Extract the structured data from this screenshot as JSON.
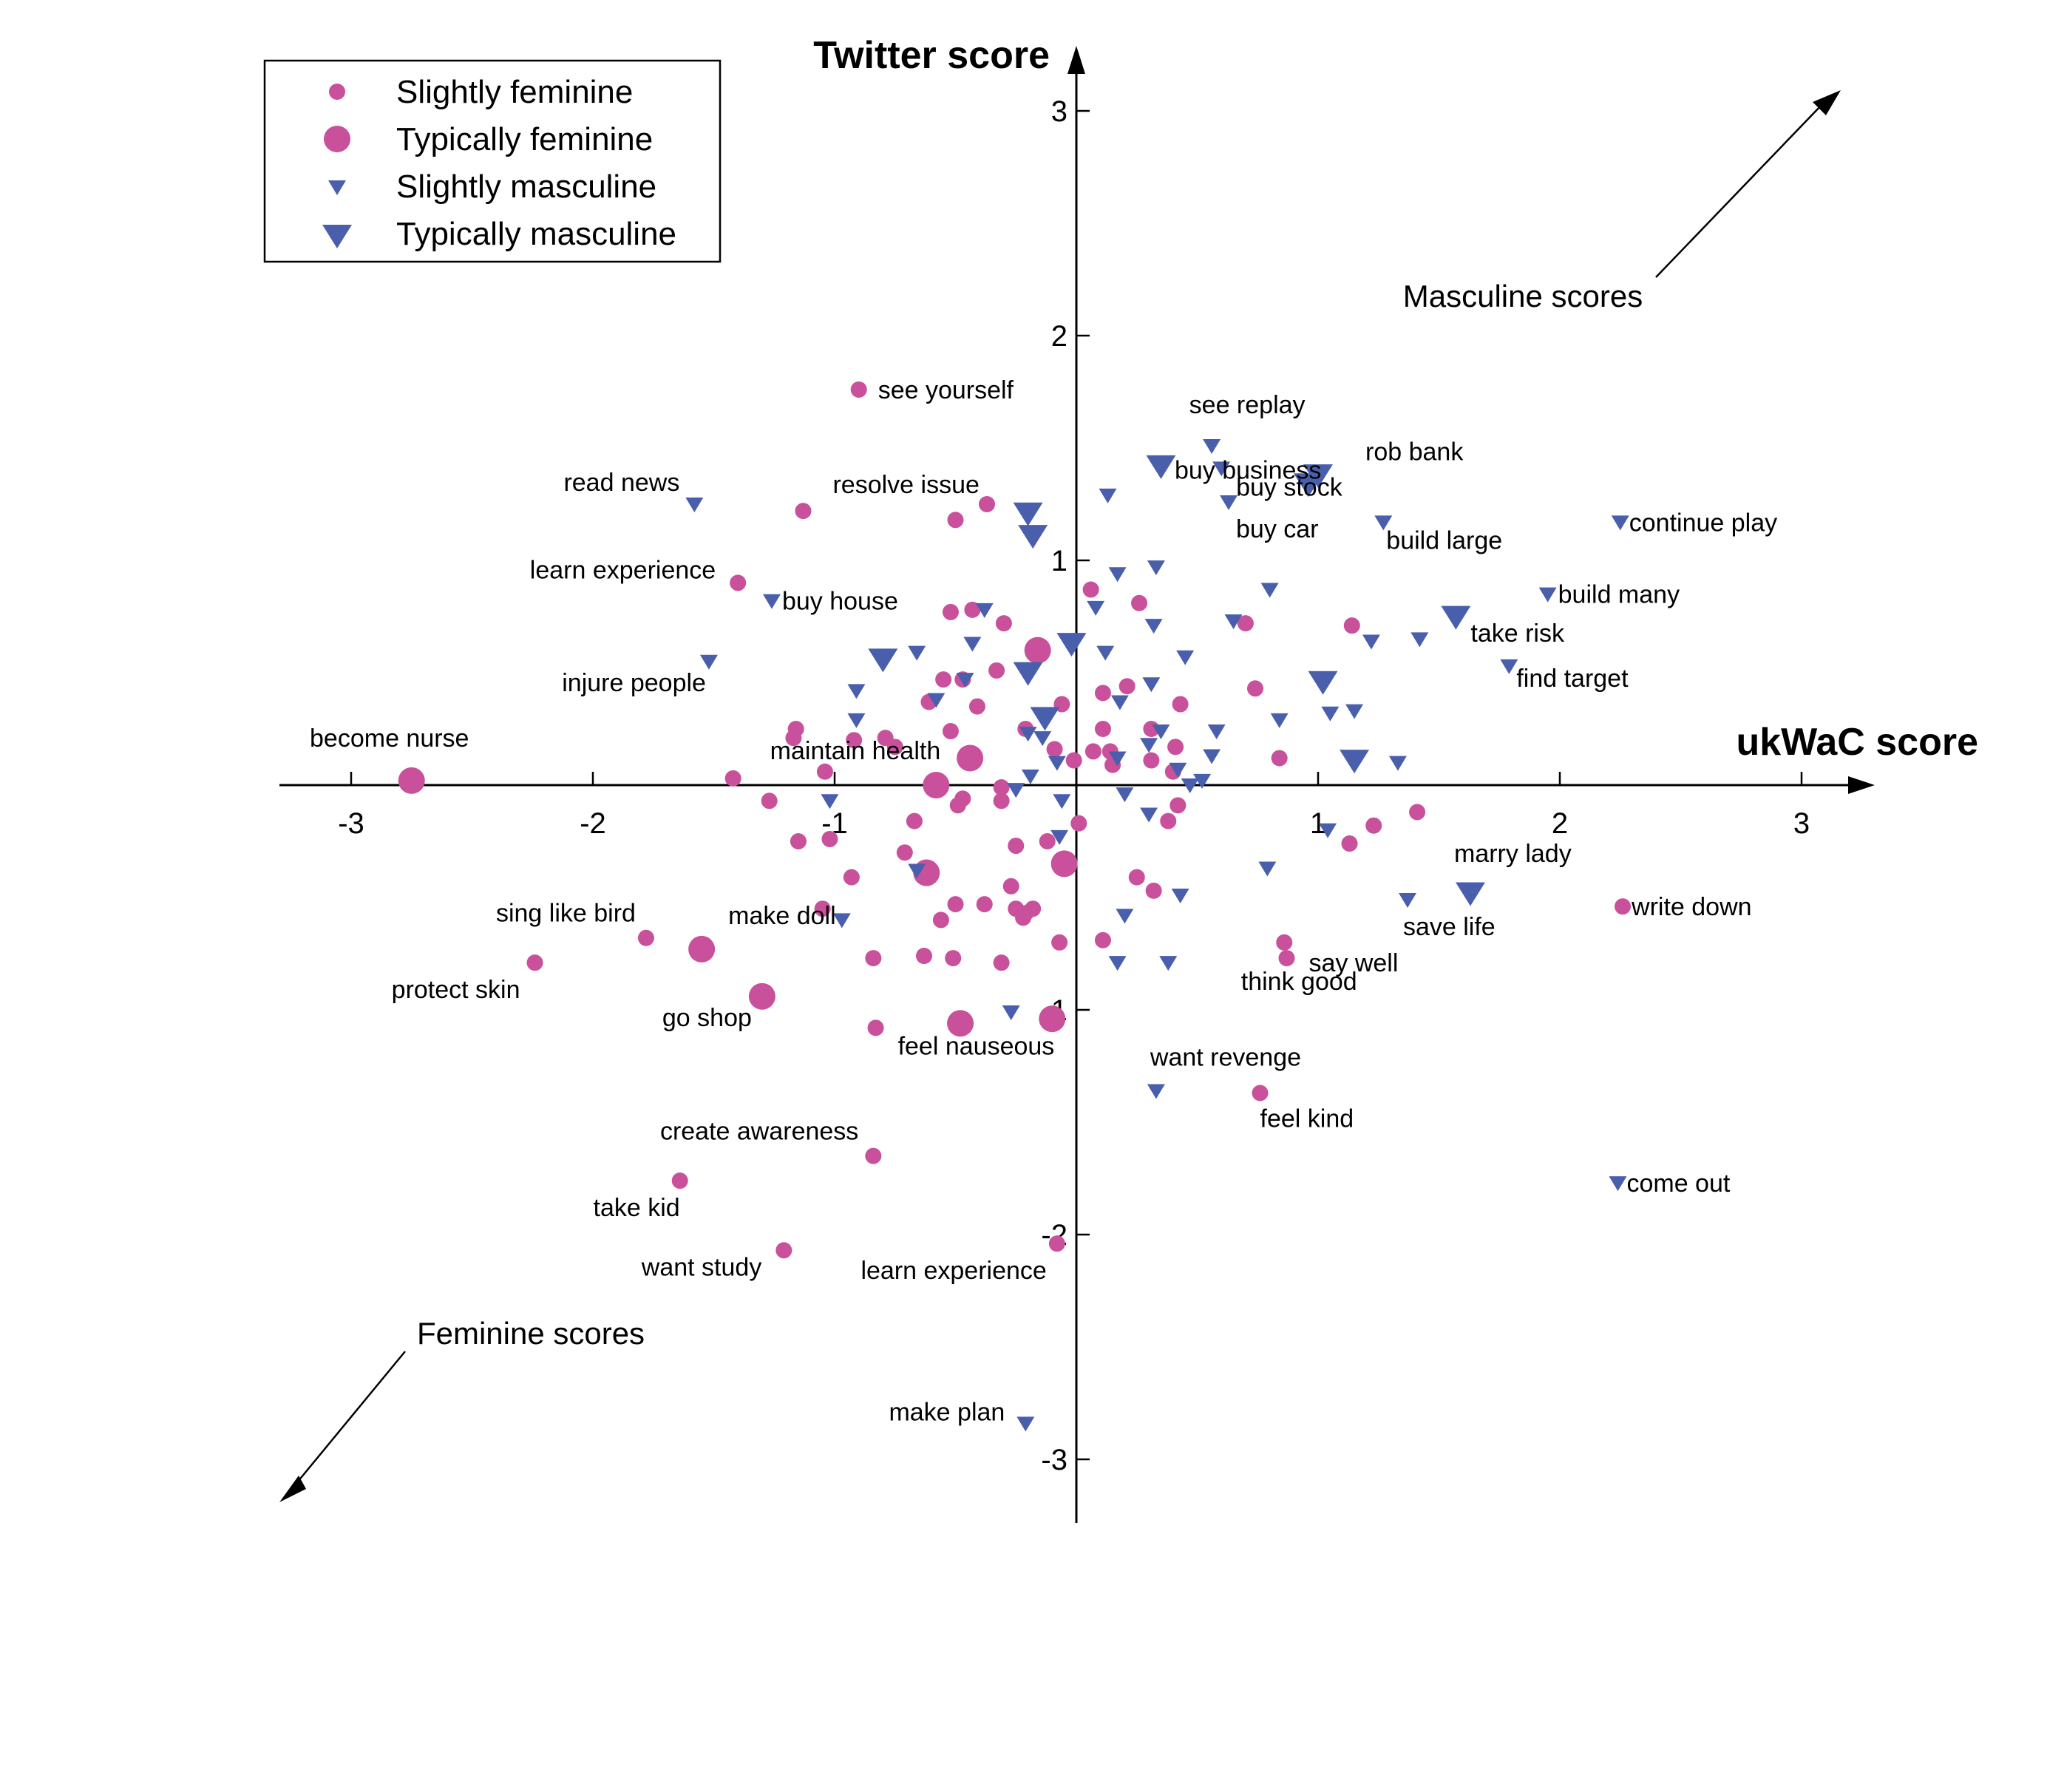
{
  "chart_data": {
    "type": "scatter",
    "xlabel": "ukWaC score",
    "ylabel": "Twitter score",
    "xlim": [
      -3.3,
      3.3
    ],
    "ylim": [
      -3.3,
      3.3
    ],
    "xticks": [
      -3,
      -2,
      -1,
      1,
      2,
      3
    ],
    "yticks": [
      3,
      2,
      1,
      -1,
      -2,
      -3
    ],
    "grid": false,
    "legend_position": "top-left",
    "colors": {
      "feminine": "#c9509a",
      "masculine": "#4a5fac"
    },
    "legend": [
      {
        "name": "Slightly feminine",
        "marker": "circle",
        "size": "small"
      },
      {
        "name": "Typically feminine",
        "marker": "circle",
        "size": "large"
      },
      {
        "name": "Slightly masculine",
        "marker": "triangle-down",
        "size": "small"
      },
      {
        "name": "Typically masculine",
        "marker": "triangle-down",
        "size": "large"
      }
    ],
    "annotations": {
      "masculine_arrow": "Masculine scores",
      "feminine_arrow": "Feminine scores"
    },
    "series": [
      {
        "name": "Slightly feminine",
        "points": [
          {
            "x": -0.9,
            "y": 1.76,
            "label": "see yourself"
          },
          {
            "x": -1.13,
            "y": 1.22,
            "label": "resolve issue"
          },
          {
            "x": -1.4,
            "y": 0.9,
            "label": "learn experience"
          },
          {
            "x": -1.42,
            "y": 0.03,
            "label": "maintain health"
          },
          {
            "x": -1.78,
            "y": -0.68,
            "label": "sing like bird"
          },
          {
            "x": -2.24,
            "y": -0.79,
            "label": "protect skin"
          },
          {
            "x": -0.83,
            "y": -1.08,
            "label": "feel nauseous"
          },
          {
            "x": -0.84,
            "y": -1.65,
            "label": "create awareness"
          },
          {
            "x": -1.64,
            "y": -1.76,
            "label": "take kid"
          },
          {
            "x": -1.21,
            "y": -2.07,
            "label": "want study"
          },
          {
            "x": -0.08,
            "y": -2.04,
            "label": "learn experience"
          },
          {
            "x": 0.87,
            "y": -0.77,
            "label": "say well"
          },
          {
            "x": 0.86,
            "y": -0.7,
            "label": "think good"
          },
          {
            "x": 0.76,
            "y": -1.37,
            "label": "feel kind"
          },
          {
            "x": 2.26,
            "y": -0.54,
            "label": "write down"
          },
          {
            "x": -0.5,
            "y": 1.18
          },
          {
            "x": -0.37,
            "y": 1.25
          },
          {
            "x": -0.52,
            "y": 0.77
          },
          {
            "x": -0.55,
            "y": 0.47
          },
          {
            "x": -0.41,
            "y": 0.35
          },
          {
            "x": -0.3,
            "y": 0.72
          },
          {
            "x": -0.33,
            "y": 0.51
          },
          {
            "x": -0.43,
            "y": 0.78
          },
          {
            "x": -0.47,
            "y": 0.47
          },
          {
            "x": -0.52,
            "y": 0.24
          },
          {
            "x": -0.61,
            "y": 0.37
          },
          {
            "x": -0.75,
            "y": 0.17
          },
          {
            "x": -0.79,
            "y": 0.21
          },
          {
            "x": -0.92,
            "y": 0.2
          },
          {
            "x": -1.17,
            "y": 0.21
          },
          {
            "x": -1.16,
            "y": 0.25
          },
          {
            "x": -1.04,
            "y": 0.06
          },
          {
            "x": -1.27,
            "y": -0.07
          },
          {
            "x": -1.15,
            "y": -0.25
          },
          {
            "x": -1.02,
            "y": -0.24
          },
          {
            "x": -0.93,
            "y": -0.41
          },
          {
            "x": -1.05,
            "y": -0.55
          },
          {
            "x": -0.67,
            "y": -0.16
          },
          {
            "x": -0.71,
            "y": -0.3
          },
          {
            "x": -0.47,
            "y": -0.06
          },
          {
            "x": -0.49,
            "y": -0.09
          },
          {
            "x": -0.31,
            "y": -0.07
          },
          {
            "x": -0.31,
            "y": -0.01
          },
          {
            "x": -0.5,
            "y": -0.53
          },
          {
            "x": -0.56,
            "y": -0.6
          },
          {
            "x": -0.63,
            "y": -0.76
          },
          {
            "x": -0.51,
            "y": -0.77
          },
          {
            "x": -0.31,
            "y": -0.79
          },
          {
            "x": -0.84,
            "y": -0.77
          },
          {
            "x": -0.25,
            "y": -0.27
          },
          {
            "x": -0.25,
            "y": -0.55
          },
          {
            "x": -0.22,
            "y": -0.59
          },
          {
            "x": -0.21,
            "y": -0.57
          },
          {
            "x": -0.38,
            "y": -0.53
          },
          {
            "x": -0.18,
            "y": -0.55
          },
          {
            "x": -0.27,
            "y": -0.45
          },
          {
            "x": -0.12,
            "y": -0.25
          },
          {
            "x": -0.07,
            "y": -0.7
          },
          {
            "x": 0.01,
            "y": -0.17
          },
          {
            "x": -0.21,
            "y": 0.25
          },
          {
            "x": -0.06,
            "y": 0.36
          },
          {
            "x": -0.09,
            "y": 0.16
          },
          {
            "x": -0.01,
            "y": 0.11
          },
          {
            "x": 0.06,
            "y": 0.87
          },
          {
            "x": 0.26,
            "y": 0.81
          },
          {
            "x": 0.21,
            "y": 0.44
          },
          {
            "x": 0.11,
            "y": 0.41
          },
          {
            "x": 0.11,
            "y": 0.25
          },
          {
            "x": 0.07,
            "y": 0.15
          },
          {
            "x": 0.14,
            "y": 0.15
          },
          {
            "x": 0.15,
            "y": 0.09
          },
          {
            "x": 0.31,
            "y": 0.25
          },
          {
            "x": 0.31,
            "y": 0.11
          },
          {
            "x": 0.41,
            "y": 0.17
          },
          {
            "x": 0.43,
            "y": 0.36
          },
          {
            "x": 0.4,
            "y": 0.06
          },
          {
            "x": 0.42,
            "y": -0.09
          },
          {
            "x": 0.38,
            "y": -0.16
          },
          {
            "x": 0.25,
            "y": -0.41
          },
          {
            "x": 0.32,
            "y": -0.47
          },
          {
            "x": 0.11,
            "y": -0.69
          },
          {
            "x": 0.7,
            "y": 0.72
          },
          {
            "x": 0.74,
            "y": 0.43
          },
          {
            "x": 0.84,
            "y": 0.12
          },
          {
            "x": 1.14,
            "y": 0.71
          },
          {
            "x": 1.13,
            "y": -0.26
          },
          {
            "x": 1.23,
            "y": -0.18
          },
          {
            "x": 1.41,
            "y": -0.12
          }
        ]
      },
      {
        "name": "Typically feminine",
        "points": [
          {
            "x": -2.75,
            "y": 0.02,
            "label": "become nurse"
          },
          {
            "x": -1.55,
            "y": -0.73,
            "label": "make doll"
          },
          {
            "x": -1.3,
            "y": -0.94,
            "label": "go shop"
          },
          {
            "x": -0.48,
            "y": -1.06
          },
          {
            "x": -0.1,
            "y": -1.04
          },
          {
            "x": -0.62,
            "y": -0.39
          },
          {
            "x": -0.05,
            "y": -0.35
          },
          {
            "x": -0.58,
            "y": 0.0
          },
          {
            "x": -0.44,
            "y": 0.12
          },
          {
            "x": -0.16,
            "y": 0.6
          }
        ]
      },
      {
        "name": "Slightly masculine",
        "points": [
          {
            "x": 0.56,
            "y": 1.51,
            "label": "see replay"
          },
          {
            "x": 0.6,
            "y": 1.41,
            "label": "buy business"
          },
          {
            "x": 0.63,
            "y": 1.26,
            "label": "buy car"
          },
          {
            "x": 1.27,
            "y": 1.17,
            "label": "build large"
          },
          {
            "x": 2.25,
            "y": 1.17,
            "label": "continue play"
          },
          {
            "x": -1.58,
            "y": 1.25,
            "label": "read news"
          },
          {
            "x": -1.26,
            "y": 0.82,
            "label": "buy house"
          },
          {
            "x": -1.52,
            "y": 0.55,
            "label": "injure people"
          },
          {
            "x": 1.95,
            "y": 0.85,
            "label": "build many"
          },
          {
            "x": 1.79,
            "y": 0.53,
            "label": "find target"
          },
          {
            "x": 1.37,
            "y": -0.51,
            "label": "save life"
          },
          {
            "x": 0.33,
            "y": -1.36,
            "label": "want revenge"
          },
          {
            "x": 2.24,
            "y": -1.77,
            "label": "come out"
          },
          {
            "x": -0.21,
            "y": -2.84,
            "label": "make plan"
          },
          {
            "x": 0.13,
            "y": 1.29
          },
          {
            "x": 0.17,
            "y": 0.94
          },
          {
            "x": 0.33,
            "y": 0.97
          },
          {
            "x": 0.08,
            "y": 0.79
          },
          {
            "x": 0.32,
            "y": 0.71
          },
          {
            "x": 0.12,
            "y": 0.59
          },
          {
            "x": 0.45,
            "y": 0.57
          },
          {
            "x": 0.31,
            "y": 0.45
          },
          {
            "x": 0.18,
            "y": 0.37
          },
          {
            "x": 0.35,
            "y": 0.24
          },
          {
            "x": 0.3,
            "y": 0.18
          },
          {
            "x": 0.17,
            "y": 0.12
          },
          {
            "x": 0.42,
            "y": 0.07
          },
          {
            "x": 0.47,
            "y": 0.0
          },
          {
            "x": 0.52,
            "y": 0.02
          },
          {
            "x": 0.56,
            "y": 0.13
          },
          {
            "x": 0.58,
            "y": 0.24
          },
          {
            "x": 0.2,
            "y": -0.04
          },
          {
            "x": 0.3,
            "y": -0.13
          },
          {
            "x": 0.2,
            "y": -0.58
          },
          {
            "x": 0.43,
            "y": -0.49
          },
          {
            "x": 0.17,
            "y": -0.79
          },
          {
            "x": 0.38,
            "y": -0.79
          },
          {
            "x": 0.8,
            "y": 0.87
          },
          {
            "x": 0.65,
            "y": 0.73
          },
          {
            "x": 0.84,
            "y": 0.29
          },
          {
            "x": 0.79,
            "y": -0.37
          },
          {
            "x": 1.05,
            "y": 0.32
          },
          {
            "x": 1.15,
            "y": 0.33
          },
          {
            "x": 1.22,
            "y": 0.64
          },
          {
            "x": 1.42,
            "y": 0.65
          },
          {
            "x": 1.33,
            "y": 0.1
          },
          {
            "x": 1.04,
            "y": -0.2
          },
          {
            "x": -0.38,
            "y": 0.78
          },
          {
            "x": -0.43,
            "y": 0.63
          },
          {
            "x": -0.66,
            "y": 0.59
          },
          {
            "x": -0.46,
            "y": 0.47
          },
          {
            "x": -0.58,
            "y": 0.38
          },
          {
            "x": -0.91,
            "y": 0.42
          },
          {
            "x": -0.91,
            "y": 0.29
          },
          {
            "x": -0.2,
            "y": 0.23
          },
          {
            "x": -0.14,
            "y": 0.21
          },
          {
            "x": -0.08,
            "y": 0.1
          },
          {
            "x": -0.19,
            "y": 0.04
          },
          {
            "x": -0.25,
            "y": -0.02
          },
          {
            "x": -0.06,
            "y": -0.07
          },
          {
            "x": -1.02,
            "y": -0.07
          },
          {
            "x": -0.07,
            "y": -0.23
          },
          {
            "x": -0.66,
            "y": -0.38
          },
          {
            "x": -0.97,
            "y": -0.6
          },
          {
            "x": -0.27,
            "y": -1.01
          }
        ]
      },
      {
        "name": "Typically masculine",
        "points": [
          {
            "x": 1.0,
            "y": 1.38,
            "label": "rob bank"
          },
          {
            "x": 0.96,
            "y": 1.34,
            "label": "buy stock"
          },
          {
            "x": 1.57,
            "y": 0.75,
            "label": "take risk"
          },
          {
            "x": 1.63,
            "y": -0.48,
            "label": "marry lady"
          },
          {
            "x": 0.35,
            "y": 1.42
          },
          {
            "x": -0.2,
            "y": 1.21
          },
          {
            "x": -0.18,
            "y": 1.11
          },
          {
            "x": -0.02,
            "y": 0.63
          },
          {
            "x": -0.8,
            "y": 0.56
          },
          {
            "x": -0.2,
            "y": 0.5
          },
          {
            "x": -0.13,
            "y": 0.3
          },
          {
            "x": 1.02,
            "y": 0.46
          },
          {
            "x": 1.15,
            "y": 0.11
          }
        ]
      }
    ]
  }
}
